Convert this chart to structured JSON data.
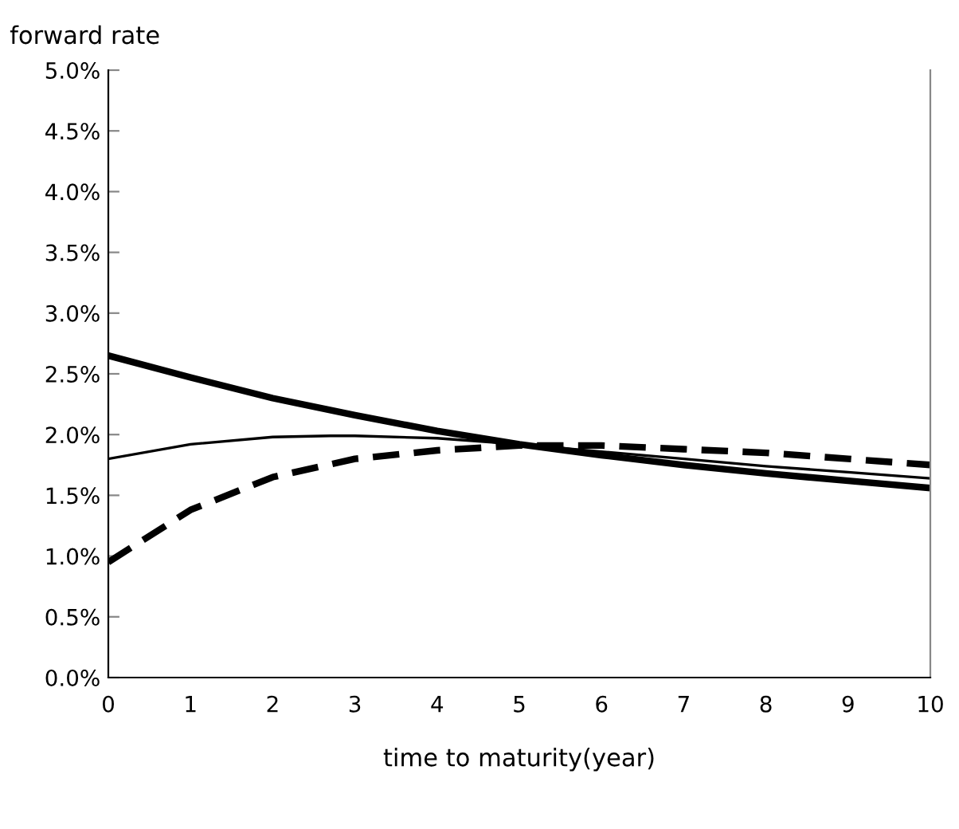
{
  "chart_data": {
    "type": "line",
    "ylabel": "forward rate",
    "xlabel": "time to maturity(year)",
    "xlim": [
      0,
      10
    ],
    "xticks": [
      0,
      1,
      2,
      3,
      4,
      5,
      6,
      7,
      8,
      9,
      10
    ],
    "ylim": [
      0,
      5
    ],
    "yticks": [
      {
        "value": 0,
        "label": "0.0%"
      },
      {
        "value": 0.5,
        "label": "0.5%"
      },
      {
        "value": 1,
        "label": "1.0%"
      },
      {
        "value": 1.5,
        "label": "1.5%"
      },
      {
        "value": 2,
        "label": "2.0%"
      },
      {
        "value": 2.5,
        "label": "2.5%"
      },
      {
        "value": 3,
        "label": "3.0%"
      },
      {
        "value": 3.5,
        "label": "3.5%"
      },
      {
        "value": 4,
        "label": "4.0%"
      },
      {
        "value": 4.5,
        "label": "4.5%"
      },
      {
        "value": 5,
        "label": "5.0%"
      }
    ],
    "grid": false,
    "legend": false,
    "marker": "none",
    "series": [
      {
        "color": "#000000",
        "line_style": "solid",
        "x": [
          0,
          1,
          2,
          3,
          4,
          5,
          6,
          7,
          8,
          9,
          10
        ],
        "values": [
          2.65,
          2.47,
          2.3,
          2.16,
          2.03,
          1.92,
          1.83,
          1.75,
          1.68,
          1.62,
          1.56
        ]
      },
      {
        "color": "#000000",
        "line_style": "solid",
        "x": [
          0,
          1,
          2,
          2.7,
          3,
          4,
          5,
          6,
          7,
          8,
          9,
          10
        ],
        "values": [
          1.8,
          1.92,
          1.98,
          1.99,
          1.99,
          1.97,
          1.92,
          1.86,
          1.8,
          1.74,
          1.69,
          1.64
        ]
      },
      {
        "color": "#000000",
        "line_style": "dashed",
        "x": [
          0,
          1,
          2,
          3,
          4,
          5,
          6,
          7,
          8,
          9,
          10
        ],
        "values": [
          0.95,
          1.38,
          1.65,
          1.8,
          1.87,
          1.91,
          1.91,
          1.88,
          1.85,
          1.8,
          1.75
        ]
      }
    ]
  }
}
